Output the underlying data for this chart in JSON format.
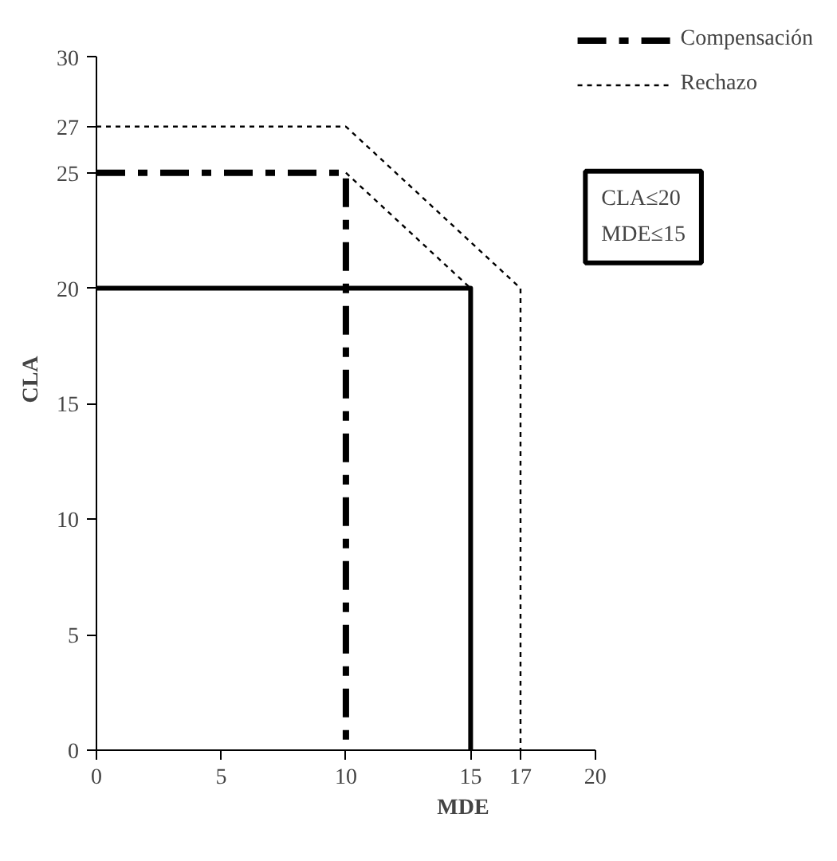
{
  "chart_data": {
    "type": "line",
    "xlabel": "MDE",
    "ylabel": "CLA",
    "xlim": [
      0,
      20
    ],
    "ylim": [
      0,
      30
    ],
    "xticks": [
      0,
      5,
      10,
      15,
      17,
      20
    ],
    "yticks": [
      0,
      5,
      10,
      15,
      20,
      25,
      27,
      30
    ],
    "series": [
      {
        "x": [
          0,
          15,
          15
        ],
        "values": [
          20,
          20,
          0
        ],
        "color": "#000000",
        "line_style": "solid"
      },
      {
        "name": "Compensación",
        "x": [
          0,
          10,
          10
        ],
        "values": [
          25,
          25,
          0
        ],
        "color": "#000000",
        "line_style": "dashed"
      },
      {
        "name": "Rechazo",
        "x": [
          0,
          10,
          17,
          17
        ],
        "values": [
          27,
          27,
          20,
          0
        ],
        "color": "#000000",
        "line_style": "dotted"
      },
      {
        "x": [
          10,
          15
        ],
        "values": [
          25,
          20
        ],
        "color": "#000000",
        "line_style": "dotted"
      }
    ],
    "annotations": [
      "CLA≤20\nMDE≤15"
    ],
    "legend": "top right",
    "grid": false,
    "marker": "none"
  }
}
